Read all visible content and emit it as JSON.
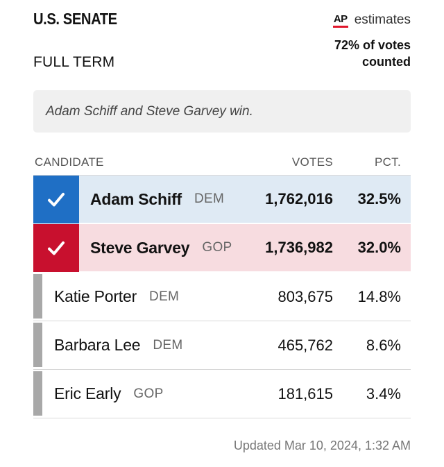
{
  "header": {
    "title": "U.S. SENATE",
    "subtitle": "FULL TERM",
    "source_logo": "AP",
    "source_label": "estimates",
    "counted_line1": "72% of votes",
    "counted_line2": "counted"
  },
  "result_summary": "Adam Schiff and Steve Garvey win.",
  "table": {
    "columns": {
      "candidate": "CANDIDATE",
      "votes": "VOTES",
      "pct": "PCT."
    },
    "rows": [
      {
        "name": "Adam Schiff",
        "party": "DEM",
        "votes": "1,762,016",
        "pct": "32.5%",
        "winner": true
      },
      {
        "name": "Steve Garvey",
        "party": "GOP",
        "votes": "1,736,982",
        "pct": "32.0%",
        "winner": true
      },
      {
        "name": "Katie Porter",
        "party": "DEM",
        "votes": "803,675",
        "pct": "14.8%",
        "winner": false
      },
      {
        "name": "Barbara Lee",
        "party": "DEM",
        "votes": "465,762",
        "pct": "8.6%",
        "winner": false
      },
      {
        "name": "Eric Early",
        "party": "GOP",
        "votes": "181,615",
        "pct": "3.4%",
        "winner": false
      }
    ]
  },
  "footer": {
    "updated": "Updated Mar 10, 2024, 1:32 AM"
  },
  "colors": {
    "dem_accent": "#1f6fc5",
    "dem_row_bg": "#dfeaf4",
    "gop_accent": "#c8102e",
    "gop_row_bg": "#f7dce0",
    "ap_red": "#e0162b",
    "non_winner_bar": "#a8a8a8"
  },
  "icons": {
    "winner_marker": "checkmark-icon"
  }
}
